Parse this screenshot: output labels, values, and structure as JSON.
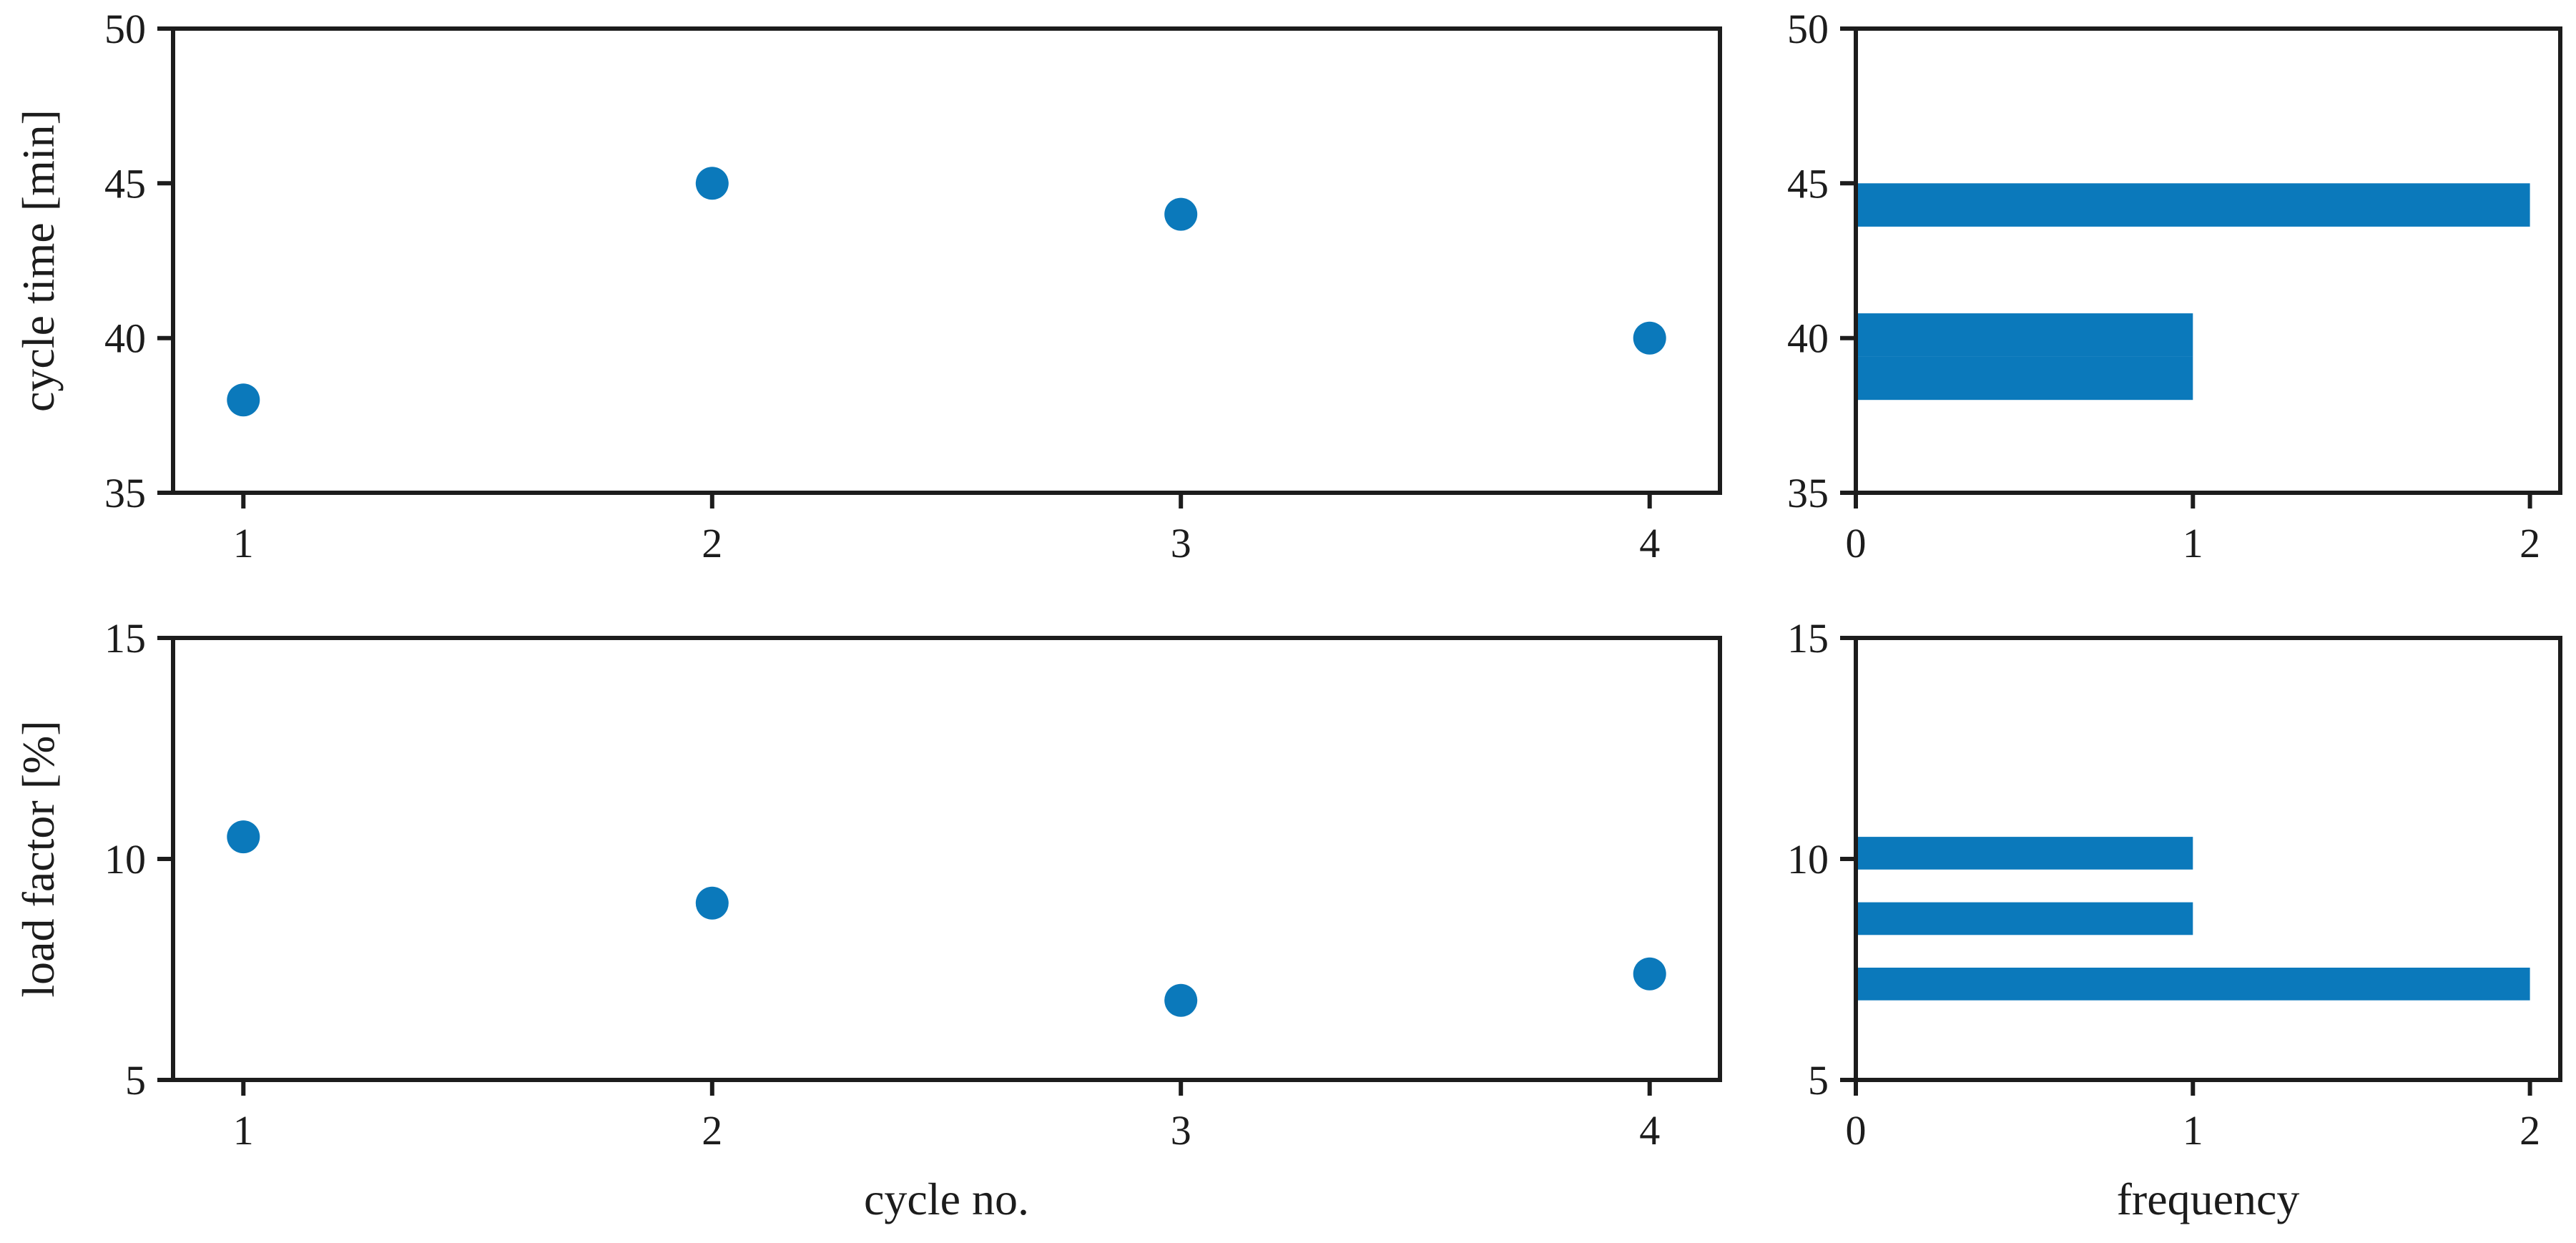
{
  "style": {
    "background": "#ffffff",
    "axis_color": "#1c1c1c",
    "point_color": "#0b79bb",
    "bar_color": "#0b79bb"
  },
  "chart_data": [
    {
      "id": "cycle-time-scatter",
      "type": "scatter",
      "title": "",
      "xlabel": "",
      "ylabel": "cycle time [min]",
      "x": [
        1,
        2,
        3,
        4
      ],
      "y": [
        38,
        45,
        44,
        40
      ],
      "xlim": [
        0.85,
        4.15
      ],
      "ylim": [
        35,
        50
      ],
      "xticks": [
        1,
        2,
        3,
        4
      ],
      "yticks": [
        35,
        40,
        45,
        50
      ],
      "grid": false,
      "legend": "none"
    },
    {
      "id": "cycle-time-hist",
      "type": "barh-histogram",
      "title": "",
      "xlabel": "",
      "ylabel": "",
      "bins": [
        {
          "from": 38.0,
          "to": 39.4,
          "count": 1
        },
        {
          "from": 39.4,
          "to": 40.8,
          "count": 1
        },
        {
          "from": 40.8,
          "to": 42.2,
          "count": 0
        },
        {
          "from": 42.2,
          "to": 43.6,
          "count": 0
        },
        {
          "from": 43.6,
          "to": 45.0,
          "count": 2
        }
      ],
      "xlim": [
        0,
        2.09
      ],
      "ylim": [
        35,
        50
      ],
      "xticks": [
        0,
        1,
        2
      ],
      "yticks": [
        35,
        40,
        45,
        50
      ],
      "grid": false,
      "legend": "none"
    },
    {
      "id": "load-factor-scatter",
      "type": "scatter",
      "title": "",
      "xlabel": "cycle no.",
      "ylabel": "load factor [%]",
      "x": [
        1,
        2,
        3,
        4
      ],
      "y": [
        10.5,
        9.0,
        6.8,
        7.4
      ],
      "xlim": [
        0.85,
        4.15
      ],
      "ylim": [
        5,
        15
      ],
      "xticks": [
        1,
        2,
        3,
        4
      ],
      "yticks": [
        5,
        10,
        15
      ],
      "grid": false,
      "legend": "none"
    },
    {
      "id": "load-factor-hist",
      "type": "barh-histogram",
      "title": "",
      "xlabel": "frequency",
      "ylabel": "",
      "bins": [
        {
          "from": 6.8,
          "to": 7.54,
          "count": 2
        },
        {
          "from": 7.54,
          "to": 8.28,
          "count": 0
        },
        {
          "from": 8.28,
          "to": 9.02,
          "count": 1
        },
        {
          "from": 9.02,
          "to": 9.76,
          "count": 0
        },
        {
          "from": 9.76,
          "to": 10.5,
          "count": 1
        }
      ],
      "xlim": [
        0,
        2.09
      ],
      "ylim": [
        5,
        15
      ],
      "xticks": [
        0,
        1,
        2
      ],
      "yticks": [
        5,
        10,
        15
      ],
      "grid": false,
      "legend": "none"
    }
  ]
}
